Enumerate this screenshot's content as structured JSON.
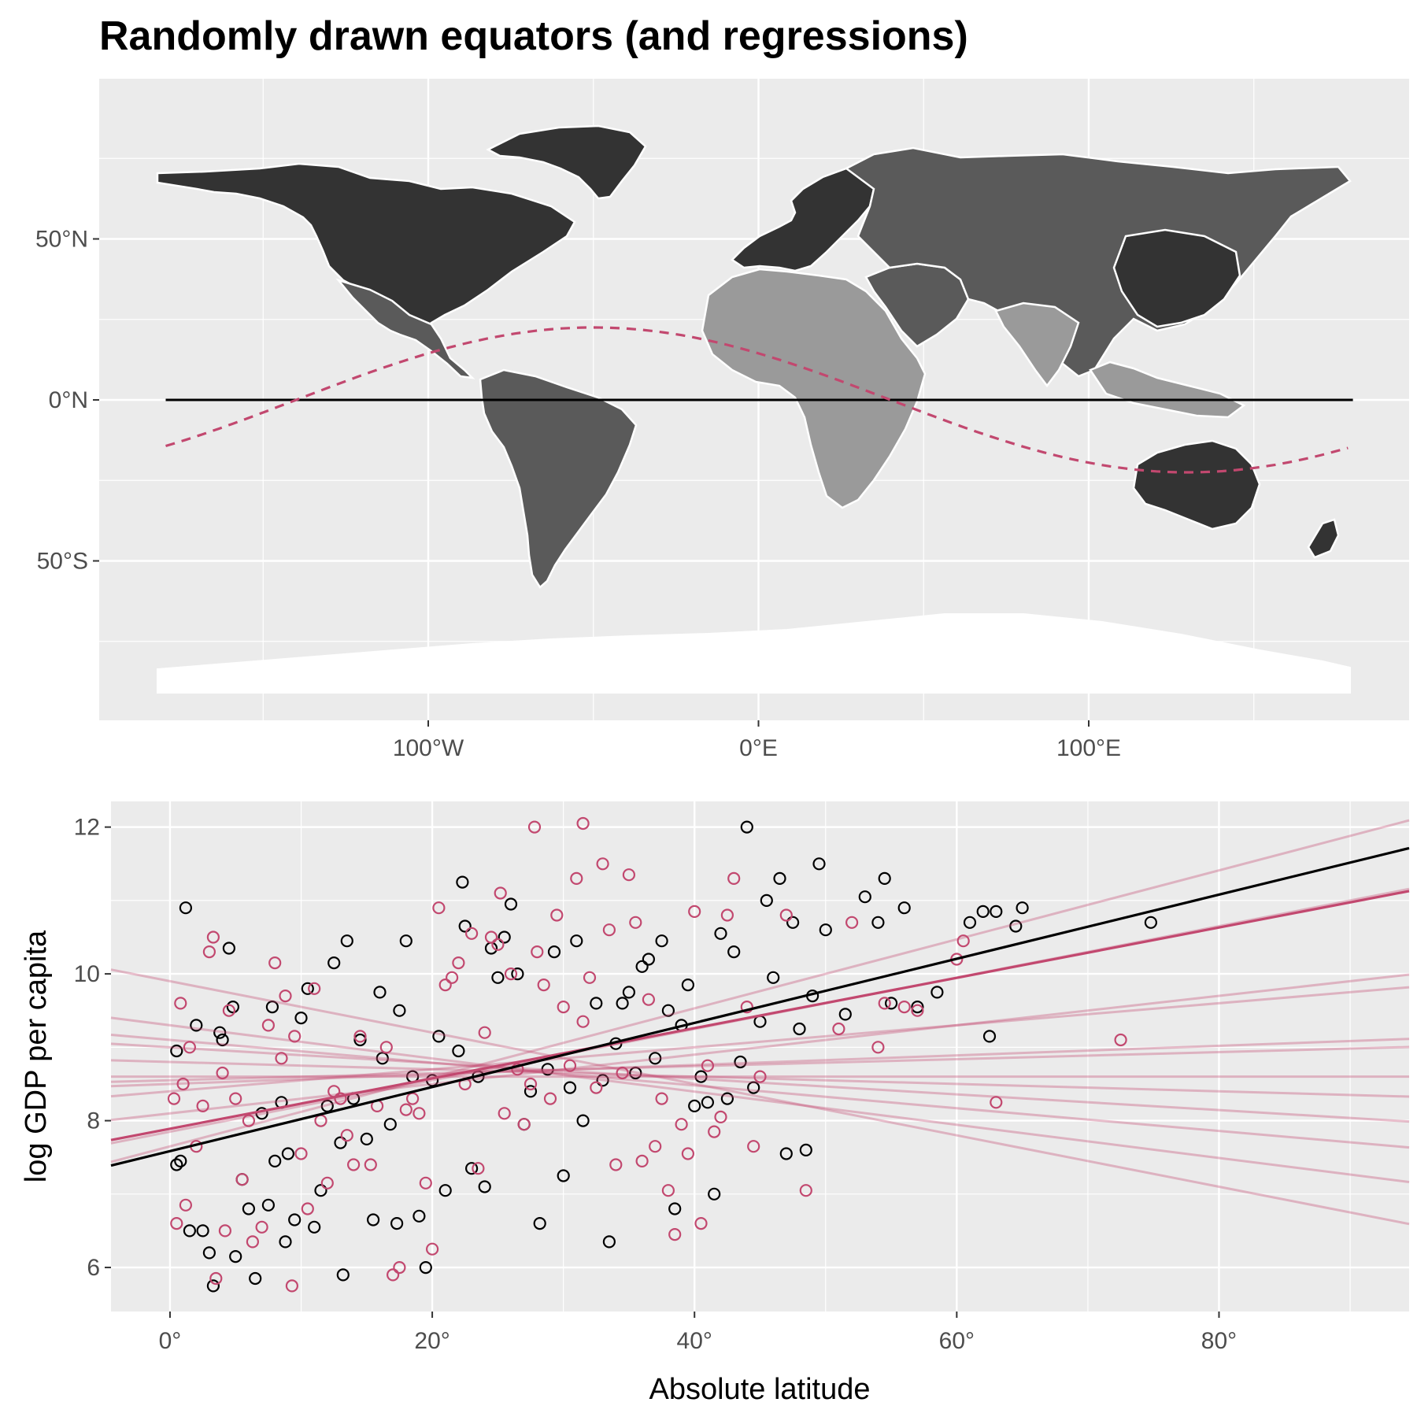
{
  "title": "Randomly drawn equators (and regressions)",
  "colors": {
    "panel": "#ebebeb",
    "grid": "#ffffff",
    "land_dark": "#333333",
    "land_mid": "#5a5a5a",
    "land_light": "#9a9a9a",
    "accent": "#c2486f",
    "black": "#000000"
  },
  "chart_data": [
    {
      "type": "map",
      "x_ticks": [
        "100°W",
        "0°E",
        "100°E"
      ],
      "x_tick_values": [
        -100,
        0,
        100
      ],
      "y_ticks": [
        "50°N",
        "0°N",
        "50°S"
      ],
      "y_tick_values": [
        50,
        0,
        -50
      ],
      "xlim": [
        -180,
        180
      ],
      "ylim": [
        -90,
        90
      ],
      "equator": {
        "style": "solid",
        "color": "#000000",
        "lat": 0
      },
      "random_equator": {
        "style": "dashed",
        "color": "#c2486f",
        "amplitude": 22.5,
        "peak_lon": -50
      }
    },
    {
      "type": "scatter",
      "xlabel": "Absolute latitude",
      "ylabel": "log GDP per capita",
      "x_ticks": [
        "0°",
        "20°",
        "40°",
        "60°",
        "80°"
      ],
      "x_tick_values": [
        0,
        20,
        40,
        60,
        80
      ],
      "y_ticks": [
        "6",
        "8",
        "10",
        "12"
      ],
      "y_tick_values": [
        6,
        8,
        10,
        12
      ],
      "xlim": [
        -4.5,
        94.5
      ],
      "ylim": [
        5.4,
        12.35
      ],
      "series": [
        {
          "color": "#000000",
          "points": [
            [
              0.5,
              8.95
            ],
            [
              0.5,
              7.4
            ],
            [
              0.8,
              7.45
            ],
            [
              1.2,
              10.9
            ],
            [
              1.5,
              6.5
            ],
            [
              2,
              9.3
            ],
            [
              2.5,
              6.5
            ],
            [
              3,
              6.2
            ],
            [
              3.3,
              5.75
            ],
            [
              3.8,
              9.2
            ],
            [
              4,
              9.1
            ],
            [
              4.5,
              10.35
            ],
            [
              4.8,
              9.55
            ],
            [
              5,
              6.15
            ],
            [
              5.5,
              7.2
            ],
            [
              6,
              6.8
            ],
            [
              6.5,
              5.85
            ],
            [
              7,
              8.1
            ],
            [
              7.5,
              6.85
            ],
            [
              7.8,
              9.55
            ],
            [
              8,
              7.45
            ],
            [
              8.5,
              8.25
            ],
            [
              8.8,
              6.35
            ],
            [
              9,
              7.55
            ],
            [
              9.5,
              6.65
            ],
            [
              10,
              9.4
            ],
            [
              10.5,
              9.8
            ],
            [
              11,
              6.55
            ],
            [
              11.5,
              7.05
            ],
            [
              12,
              8.2
            ],
            [
              12.5,
              10.15
            ],
            [
              13,
              7.7
            ],
            [
              13.2,
              5.9
            ],
            [
              13.5,
              10.45
            ],
            [
              14,
              8.3
            ],
            [
              14.5,
              9.1
            ],
            [
              15,
              7.75
            ],
            [
              15.5,
              6.65
            ],
            [
              16,
              9.75
            ],
            [
              16.2,
              8.85
            ],
            [
              16.8,
              7.95
            ],
            [
              17.3,
              6.6
            ],
            [
              17.5,
              9.5
            ],
            [
              18,
              10.45
            ],
            [
              18.5,
              8.6
            ],
            [
              19,
              6.7
            ],
            [
              19.5,
              6.0
            ],
            [
              20,
              8.55
            ],
            [
              20.5,
              9.15
            ],
            [
              21,
              7.05
            ],
            [
              22,
              8.95
            ],
            [
              22.3,
              11.25
            ],
            [
              22.5,
              10.65
            ],
            [
              23,
              7.35
            ],
            [
              23.5,
              8.6
            ],
            [
              24,
              7.1
            ],
            [
              24.5,
              10.35
            ],
            [
              25,
              9.95
            ],
            [
              25.5,
              10.5
            ],
            [
              26,
              10.95
            ],
            [
              26.5,
              10.0
            ],
            [
              27,
              7.95
            ],
            [
              27.5,
              8.4
            ],
            [
              28.2,
              6.6
            ],
            [
              28.8,
              8.7
            ],
            [
              29.3,
              10.3
            ],
            [
              30,
              7.25
            ],
            [
              30.5,
              8.45
            ],
            [
              31,
              10.45
            ],
            [
              31.5,
              8.0
            ],
            [
              32.5,
              9.6
            ],
            [
              33,
              8.55
            ],
            [
              33.5,
              6.35
            ],
            [
              34,
              9.05
            ],
            [
              34.5,
              9.6
            ],
            [
              35,
              9.75
            ],
            [
              35.5,
              8.65
            ],
            [
              36,
              10.1
            ],
            [
              36.5,
              10.2
            ],
            [
              37,
              8.85
            ],
            [
              37.5,
              10.45
            ],
            [
              38,
              9.5
            ],
            [
              38.5,
              6.8
            ],
            [
              39,
              9.3
            ],
            [
              39.5,
              9.85
            ],
            [
              40,
              8.2
            ],
            [
              40.5,
              8.6
            ],
            [
              41,
              8.25
            ],
            [
              41.5,
              7.0
            ],
            [
              42,
              10.55
            ],
            [
              42.5,
              8.3
            ],
            [
              43,
              10.3
            ],
            [
              43.5,
              8.8
            ],
            [
              44,
              12.0
            ],
            [
              44.5,
              8.45
            ],
            [
              45,
              9.35
            ],
            [
              45.5,
              11.0
            ],
            [
              46,
              9.95
            ],
            [
              46.5,
              11.3
            ],
            [
              47,
              7.55
            ],
            [
              47.5,
              10.7
            ],
            [
              48,
              9.25
            ],
            [
              48.5,
              7.6
            ],
            [
              49,
              9.7
            ],
            [
              49.5,
              11.5
            ],
            [
              50,
              10.6
            ],
            [
              51.5,
              9.45
            ],
            [
              53,
              11.05
            ],
            [
              54,
              10.7
            ],
            [
              54.5,
              11.3
            ],
            [
              55,
              9.6
            ],
            [
              56,
              10.9
            ],
            [
              57,
              9.55
            ],
            [
              58.5,
              9.75
            ],
            [
              61,
              10.7
            ],
            [
              62,
              10.85
            ],
            [
              62.5,
              9.15
            ],
            [
              63,
              10.85
            ],
            [
              64.5,
              10.65
            ],
            [
              65,
              10.9
            ],
            [
              74.8,
              10.7
            ]
          ]
        },
        {
          "color": "#c2486f",
          "points": [
            [
              0.3,
              8.3
            ],
            [
              0.5,
              6.6
            ],
            [
              0.8,
              9.6
            ],
            [
              1,
              8.5
            ],
            [
              1.2,
              6.85
            ],
            [
              1.5,
              9.0
            ],
            [
              2,
              7.65
            ],
            [
              2.5,
              8.2
            ],
            [
              3,
              10.3
            ],
            [
              3.3,
              10.5
            ],
            [
              3.5,
              5.85
            ],
            [
              4,
              8.65
            ],
            [
              4.2,
              6.5
            ],
            [
              4.5,
              9.5
            ],
            [
              5,
              8.3
            ],
            [
              5.5,
              7.2
            ],
            [
              6,
              8.0
            ],
            [
              6.3,
              6.35
            ],
            [
              7,
              6.55
            ],
            [
              7.5,
              9.3
            ],
            [
              8,
              10.15
            ],
            [
              8.5,
              8.85
            ],
            [
              8.8,
              9.7
            ],
            [
              9.3,
              5.75
            ],
            [
              9.5,
              9.15
            ],
            [
              10,
              7.55
            ],
            [
              10.5,
              6.8
            ],
            [
              11,
              9.8
            ],
            [
              11.5,
              8.0
            ],
            [
              12,
              7.15
            ],
            [
              12.5,
              8.4
            ],
            [
              13,
              8.3
            ],
            [
              13.5,
              7.8
            ],
            [
              14,
              7.4
            ],
            [
              14.5,
              9.15
            ],
            [
              15.3,
              7.4
            ],
            [
              15.8,
              8.2
            ],
            [
              16.5,
              9.0
            ],
            [
              17,
              5.9
            ],
            [
              17.5,
              6.0
            ],
            [
              18,
              8.15
            ],
            [
              18.5,
              8.3
            ],
            [
              19,
              8.1
            ],
            [
              19.5,
              7.15
            ],
            [
              20,
              6.25
            ],
            [
              20.5,
              10.9
            ],
            [
              21,
              9.85
            ],
            [
              21.5,
              9.95
            ],
            [
              22,
              10.15
            ],
            [
              22.5,
              8.5
            ],
            [
              23,
              10.55
            ],
            [
              23.5,
              7.35
            ],
            [
              24,
              9.2
            ],
            [
              24.5,
              10.5
            ],
            [
              25,
              10.4
            ],
            [
              25.2,
              11.1
            ],
            [
              25.5,
              8.1
            ],
            [
              26,
              10.0
            ],
            [
              26.5,
              8.7
            ],
            [
              27,
              7.95
            ],
            [
              27.5,
              8.5
            ],
            [
              27.8,
              12.0
            ],
            [
              28,
              10.3
            ],
            [
              28.5,
              9.85
            ],
            [
              29,
              8.3
            ],
            [
              29.5,
              10.8
            ],
            [
              30,
              9.55
            ],
            [
              30.5,
              8.75
            ],
            [
              31,
              11.3
            ],
            [
              31.5,
              9.35
            ],
            [
              31.5,
              12.05
            ],
            [
              32,
              9.95
            ],
            [
              32.5,
              8.45
            ],
            [
              33,
              11.5
            ],
            [
              33.5,
              10.6
            ],
            [
              34,
              7.4
            ],
            [
              34.5,
              8.65
            ],
            [
              35,
              11.35
            ],
            [
              35.5,
              10.7
            ],
            [
              36,
              7.45
            ],
            [
              36.5,
              9.65
            ],
            [
              37,
              7.65
            ],
            [
              37.5,
              8.3
            ],
            [
              38,
              7.05
            ],
            [
              38.5,
              6.45
            ],
            [
              39,
              7.95
            ],
            [
              39.5,
              7.55
            ],
            [
              40,
              10.85
            ],
            [
              40.5,
              6.6
            ],
            [
              41,
              8.75
            ],
            [
              41.5,
              7.85
            ],
            [
              42,
              8.05
            ],
            [
              42.5,
              10.8
            ],
            [
              43,
              11.3
            ],
            [
              44,
              9.55
            ],
            [
              44.5,
              7.65
            ],
            [
              45,
              8.6
            ],
            [
              47,
              10.8
            ],
            [
              48.5,
              7.05
            ],
            [
              51,
              9.25
            ],
            [
              52,
              10.7
            ],
            [
              54,
              9.0
            ],
            [
              54.5,
              9.6
            ],
            [
              56,
              9.55
            ],
            [
              57,
              9.5
            ],
            [
              60,
              10.2
            ],
            [
              60.5,
              10.45
            ],
            [
              63,
              8.25
            ],
            [
              72.5,
              9.1
            ]
          ]
        }
      ],
      "fit_lines": [
        {
          "color": "#000000",
          "intercept": 7.585,
          "slope": 0.04368,
          "opacity": 1
        },
        {
          "color": "#c2486f",
          "intercept": 7.89,
          "slope": 0.03427,
          "opacity": 1
        },
        {
          "color": "#c2486f",
          "intercept": 7.65,
          "slope": 0.047,
          "opacity": 0.35
        },
        {
          "color": "#c2486f",
          "intercept": 7.85,
          "slope": 0.035,
          "opacity": 0.35
        },
        {
          "color": "#c2486f",
          "intercept": 8.1,
          "slope": 0.02,
          "opacity": 0.35
        },
        {
          "color": "#c2486f",
          "intercept": 8.4,
          "slope": 0.015,
          "opacity": 0.35
        },
        {
          "color": "#c2486f",
          "intercept": 8.5,
          "slope": 0.0065,
          "opacity": 0.35
        },
        {
          "color": "#c2486f",
          "intercept": 8.55,
          "slope": 0.0048,
          "opacity": 0.35
        },
        {
          "color": "#c2486f",
          "intercept": 8.6,
          "slope": 0.0,
          "opacity": 0.35
        },
        {
          "color": "#c2486f",
          "intercept": 8.8,
          "slope": -0.005,
          "opacity": 0.35
        },
        {
          "color": "#c2486f",
          "intercept": 9.0,
          "slope": -0.0107,
          "opacity": 0.35
        },
        {
          "color": "#c2486f",
          "intercept": 9.1,
          "slope": -0.0155,
          "opacity": 0.35
        },
        {
          "color": "#c2486f",
          "intercept": 9.3,
          "slope": -0.0226,
          "opacity": 0.35
        },
        {
          "color": "#c2486f",
          "intercept": 9.9,
          "slope": -0.035,
          "opacity": 0.35
        }
      ]
    }
  ]
}
